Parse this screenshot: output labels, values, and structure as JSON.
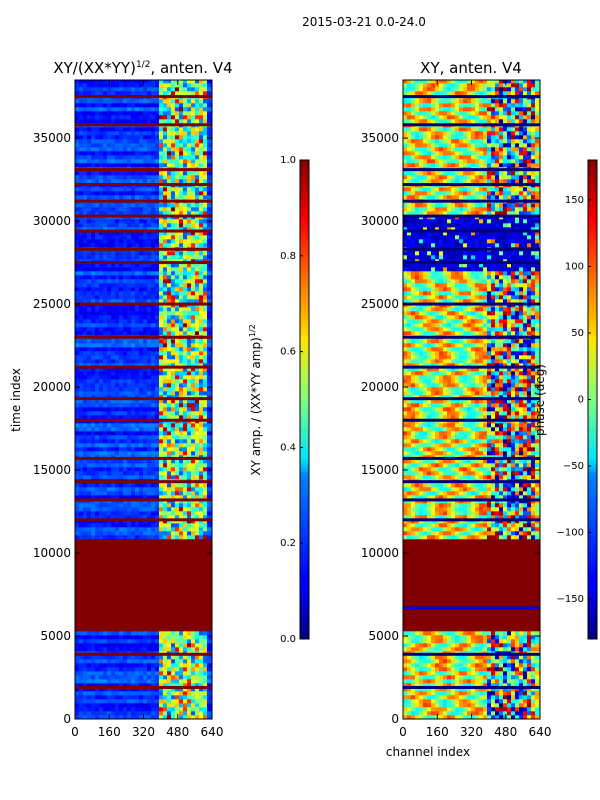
{
  "figure": {
    "suptitle": "2015-03-21 0.0-24.0"
  },
  "colors": {
    "jet_low": "#00007f",
    "jet_blue": "#0000ff",
    "jet_cyan": "#00ffff",
    "jet_yellow": "#ffff00",
    "jet_red": "#ff0000",
    "jet_high": "#7f0000"
  },
  "chart_data": [
    {
      "type": "heatmap",
      "title": "XY/(XX*YY)",
      "title_sup": "1/2",
      "title_suffix": ", anten. V4",
      "xlabel": "",
      "ylabel": "time index",
      "xlim": [
        0,
        640
      ],
      "ylim": [
        0,
        38500
      ],
      "xticks": [
        0,
        160,
        320,
        480,
        640
      ],
      "yticks": [
        0,
        5000,
        10000,
        15000,
        20000,
        25000,
        30000,
        35000
      ],
      "colorbar": {
        "label": "XY amp. / (XX*YY amp)",
        "label_sup": "1/2",
        "range": [
          0.0,
          1.0
        ],
        "ticks": [
          "0.0",
          "0.2",
          "0.4",
          "0.6",
          "0.8",
          "1.0"
        ]
      },
      "saturated_time_band": [
        5300,
        10900
      ],
      "flagged_time_rows": [
        1900,
        3900,
        12000,
        13200,
        14300,
        15700,
        18000,
        19300,
        21200,
        23000,
        25000,
        27500,
        28300,
        29400,
        30300,
        31200,
        32200,
        33100,
        35800,
        37500
      ]
    },
    {
      "type": "heatmap",
      "title": "XY, anten. V4",
      "xlabel": "channel index",
      "ylabel": "",
      "xlim": [
        0,
        640
      ],
      "ylim": [
        0,
        38500
      ],
      "xticks": [
        0,
        160,
        320,
        480,
        640
      ],
      "yticks": [
        0,
        5000,
        10000,
        15000,
        20000,
        25000,
        30000,
        35000
      ],
      "colorbar": {
        "label": "phase (deg)",
        "range": [
          -180,
          180
        ],
        "ticks": [
          "−150",
          "−100",
          "−50",
          "0",
          "50",
          "100",
          "150"
        ]
      },
      "saturated_time_band": [
        5300,
        10900
      ],
      "noisy_phase_band": [
        27000,
        30300
      ],
      "flagged_time_rows": [
        1900,
        3900,
        6700,
        12000,
        13200,
        14300,
        15700,
        18000,
        19300,
        21200,
        23000,
        25000,
        27500,
        28300,
        29400,
        30300,
        31200,
        32200,
        33100,
        35800,
        37500
      ]
    }
  ]
}
